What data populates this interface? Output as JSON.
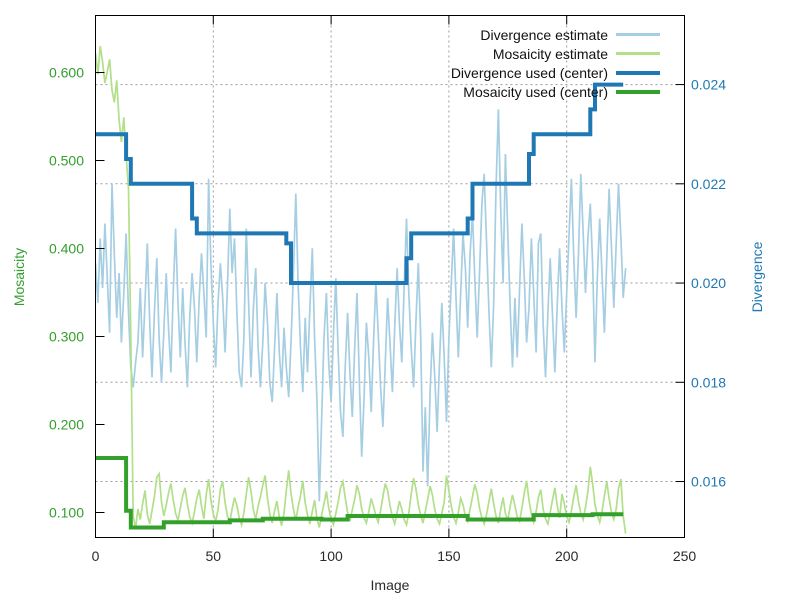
{
  "chart_data": {
    "type": "line",
    "title": "",
    "xlabel": "Image",
    "ylabel_left": "Mosaicity",
    "ylabel_right": "Divergence",
    "xlim": [
      0,
      250
    ],
    "ylim_left": [
      0.0716,
      0.6648
    ],
    "ylim_right": [
      0.014872,
      0.025392
    ],
    "xticks": [
      [
        0,
        "0"
      ],
      [
        50,
        "50"
      ],
      [
        100,
        "100"
      ],
      [
        150,
        "150"
      ],
      [
        200,
        "200"
      ],
      [
        250,
        "250"
      ]
    ],
    "yticks_left": [
      [
        0.1,
        "0.100"
      ],
      [
        0.2,
        "0.200"
      ],
      [
        0.3,
        "0.300"
      ],
      [
        0.4,
        "0.400"
      ],
      [
        0.5,
        "0.500"
      ],
      [
        0.6,
        "0.600"
      ]
    ],
    "yticks_right": [
      [
        0.016,
        "0.016"
      ],
      [
        0.018,
        "0.018"
      ],
      [
        0.02,
        "0.020"
      ],
      [
        0.022,
        "0.022"
      ],
      [
        0.024,
        "0.024"
      ]
    ],
    "grid": {
      "vertical": "xticks",
      "horizontal": "yticks_right",
      "color": "#9b9b9b",
      "style": "dashed"
    },
    "legend_position": "top-right-inside",
    "axis_colors": {
      "left": "#33a02c",
      "right": "#1f78b4",
      "x": "#2b2b2b",
      "border": "#000000"
    },
    "series": [
      {
        "name": "Divergence estimate",
        "axis": "right",
        "color": "#a6cee3",
        "line_width": 1.7,
        "style": "line",
        "x_start": 0,
        "x_step": 1,
        "values": [
          0.0204,
          0.0196,
          0.0209,
          0.0199,
          0.0212,
          0.0201,
          0.019,
          0.022,
          0.0206,
          0.0193,
          0.0202,
          0.0188,
          0.0198,
          0.021,
          0.0194,
          0.0183,
          0.0179,
          0.0184,
          0.0188,
          0.0199,
          0.0185,
          0.0196,
          0.0208,
          0.0192,
          0.0181,
          0.0194,
          0.0205,
          0.0189,
          0.018,
          0.019,
          0.0202,
          0.0191,
          0.0182,
          0.0198,
          0.0211,
          0.0196,
          0.0185,
          0.0199,
          0.0188,
          0.0179,
          0.0193,
          0.0202,
          0.0195,
          0.0184,
          0.0197,
          0.0206,
          0.0198,
          0.0189,
          0.0221,
          0.0204,
          0.0192,
          0.0183,
          0.0196,
          0.0204,
          0.0197,
          0.0186,
          0.0199,
          0.0215,
          0.0202,
          0.0209,
          0.0194,
          0.0182,
          0.0179,
          0.0189,
          0.0211,
          0.0196,
          0.0181,
          0.0195,
          0.0203,
          0.0187,
          0.0179,
          0.0188,
          0.02,
          0.0192,
          0.018,
          0.0176,
          0.0187,
          0.0198,
          0.0186,
          0.0179,
          0.0191,
          0.0183,
          0.0177,
          0.0188,
          0.0202,
          0.0218,
          0.02,
          0.0187,
          0.0178,
          0.0193,
          0.0182,
          0.0195,
          0.0207,
          0.0189,
          0.0176,
          0.0156,
          0.0173,
          0.0189,
          0.0198,
          0.0184,
          0.0176,
          0.019,
          0.0201,
          0.0186,
          0.0174,
          0.0169,
          0.0183,
          0.0194,
          0.0182,
          0.0173,
          0.0187,
          0.0198,
          0.018,
          0.0165,
          0.0177,
          0.0192,
          0.0185,
          0.0174,
          0.0188,
          0.02,
          0.019,
          0.0179,
          0.0171,
          0.0184,
          0.0197,
          0.0188,
          0.0178,
          0.0191,
          0.0203,
          0.0192,
          0.0184,
          0.0199,
          0.0213,
          0.0198,
          0.0187,
          0.0179,
          0.0192,
          0.0204,
          0.019,
          0.0162,
          0.0175,
          0.0159,
          0.0178,
          0.019,
          0.0181,
          0.017,
          0.0184,
          0.0196,
          0.0185,
          0.0172,
          0.0189,
          0.02,
          0.0211,
          0.0197,
          0.0185,
          0.0198,
          0.021,
          0.0203,
          0.0191,
          0.0206,
          0.0214,
          0.0201,
          0.0189,
          0.0202,
          0.0216,
          0.0222,
          0.0208,
          0.0194,
          0.0183,
          0.0196,
          0.0219,
          0.0235,
          0.0215,
          0.02,
          0.0226,
          0.021,
          0.0195,
          0.0183,
          0.0197,
          0.0185,
          0.0199,
          0.0212,
          0.0201,
          0.0188,
          0.0195,
          0.0209,
          0.0198,
          0.0186,
          0.0208,
          0.021,
          0.0192,
          0.0181,
          0.0194,
          0.0205,
          0.0193,
          0.0182,
          0.0196,
          0.0207,
          0.0195,
          0.0186,
          0.0198,
          0.021,
          0.0221,
          0.0205,
          0.0193,
          0.0206,
          0.0222,
          0.021,
          0.0198,
          0.0209,
          0.0216,
          0.0204,
          0.0184,
          0.0201,
          0.0213,
          0.0202,
          0.019,
          0.0205,
          0.0219,
          0.0207,
          0.0195,
          0.0208,
          0.022,
          0.0209,
          0.0197,
          0.0203
        ]
      },
      {
        "name": "Mosaicity estimate",
        "axis": "left",
        "color": "#b2df8a",
        "line_width": 1.7,
        "style": "line",
        "x_start": 0,
        "x_step": 1,
        "values": [
          0.622,
          0.598,
          0.63,
          0.612,
          0.588,
          0.601,
          0.615,
          0.58,
          0.566,
          0.591,
          0.546,
          0.521,
          0.549,
          0.506,
          0.468,
          0.3,
          0.096,
          0.082,
          0.104,
          0.092,
          0.11,
          0.125,
          0.098,
          0.087,
          0.102,
          0.118,
          0.14,
          0.144,
          0.112,
          0.096,
          0.108,
          0.122,
          0.133,
          0.115,
          0.099,
          0.091,
          0.105,
          0.119,
          0.128,
          0.11,
          0.095,
          0.088,
          0.101,
          0.116,
          0.126,
          0.107,
          0.093,
          0.12,
          0.138,
          0.114,
          0.098,
          0.09,
          0.103,
          0.127,
          0.135,
          0.111,
          0.096,
          0.089,
          0.104,
          0.117,
          0.108,
          0.094,
          0.086,
          0.1,
          0.121,
          0.14,
          0.124,
          0.103,
          0.092,
          0.107,
          0.118,
          0.131,
          0.142,
          0.116,
          0.098,
          0.088,
          0.102,
          0.113,
          0.095,
          0.085,
          0.099,
          0.125,
          0.148,
          0.122,
          0.104,
          0.091,
          0.106,
          0.119,
          0.136,
          0.111,
          0.097,
          0.087,
          0.101,
          0.114,
          0.093,
          0.083,
          0.098,
          0.11,
          0.124,
          0.105,
          0.092,
          0.086,
          0.099,
          0.112,
          0.128,
          0.135,
          0.117,
          0.1,
          0.09,
          0.103,
          0.115,
          0.131,
          0.121,
          0.104,
          0.094,
          0.088,
          0.101,
          0.116,
          0.107,
          0.096,
          0.089,
          0.102,
          0.118,
          0.133,
          0.125,
          0.108,
          0.095,
          0.087,
          0.1,
          0.113,
          0.104,
          0.092,
          0.086,
          0.099,
          0.121,
          0.139,
          0.127,
          0.109,
          0.097,
          0.088,
          0.101,
          0.115,
          0.13,
          0.12,
          0.103,
          0.093,
          0.087,
          0.099,
          0.112,
          0.142,
          0.125,
          0.107,
          0.095,
          0.088,
          0.1,
          0.116,
          0.109,
          0.096,
          0.09,
          0.104,
          0.118,
          0.132,
          0.122,
          0.105,
          0.094,
          0.087,
          0.098,
          0.113,
          0.127,
          0.11,
          0.096,
          0.088,
          0.103,
          0.117,
          0.099,
          0.091,
          0.107,
          0.12,
          0.108,
          0.095,
          0.09,
          0.105,
          0.122,
          0.136,
          0.114,
          0.098,
          0.089,
          0.101,
          0.117,
          0.126,
          0.104,
          0.093,
          0.087,
          0.1,
          0.115,
          0.128,
          0.107,
          0.094,
          0.121,
          0.11,
          0.096,
          0.089,
          0.102,
          0.118,
          0.131,
          0.112,
          0.099,
          0.092,
          0.106,
          0.124,
          0.152,
          0.133,
          0.109,
          0.097,
          0.089,
          0.101,
          0.119,
          0.135,
          0.116,
          0.1,
          0.092,
          0.104,
          0.127,
          0.138,
          0.096,
          0.076
        ]
      },
      {
        "name": "Divergence used (center)",
        "axis": "right",
        "color": "#1f78b4",
        "line_width": 4,
        "style": "steps",
        "points": [
          [
            0,
            0.023
          ],
          [
            13,
            0.0225
          ],
          [
            15,
            0.022
          ],
          [
            41,
            0.0213
          ],
          [
            43,
            0.021
          ],
          [
            81,
            0.0208
          ],
          [
            83,
            0.02
          ],
          [
            132,
            0.0205
          ],
          [
            134,
            0.021
          ],
          [
            158,
            0.0213
          ],
          [
            160,
            0.022
          ],
          [
            184,
            0.0226
          ],
          [
            186,
            0.023
          ],
          [
            210,
            0.0235
          ],
          [
            212,
            0.024
          ]
        ],
        "x_end": 224
      },
      {
        "name": "Mosaicity used (center)",
        "axis": "left",
        "color": "#33a02c",
        "line_width": 4,
        "style": "steps",
        "points": [
          [
            0,
            0.162
          ],
          [
            13,
            0.102
          ],
          [
            15,
            0.083
          ],
          [
            29,
            0.089
          ],
          [
            57,
            0.091
          ],
          [
            71,
            0.093
          ],
          [
            96,
            0.092
          ],
          [
            107,
            0.096
          ],
          [
            158,
            0.092
          ],
          [
            186,
            0.097
          ],
          [
            211,
            0.098
          ]
        ],
        "x_end": 224
      }
    ]
  }
}
